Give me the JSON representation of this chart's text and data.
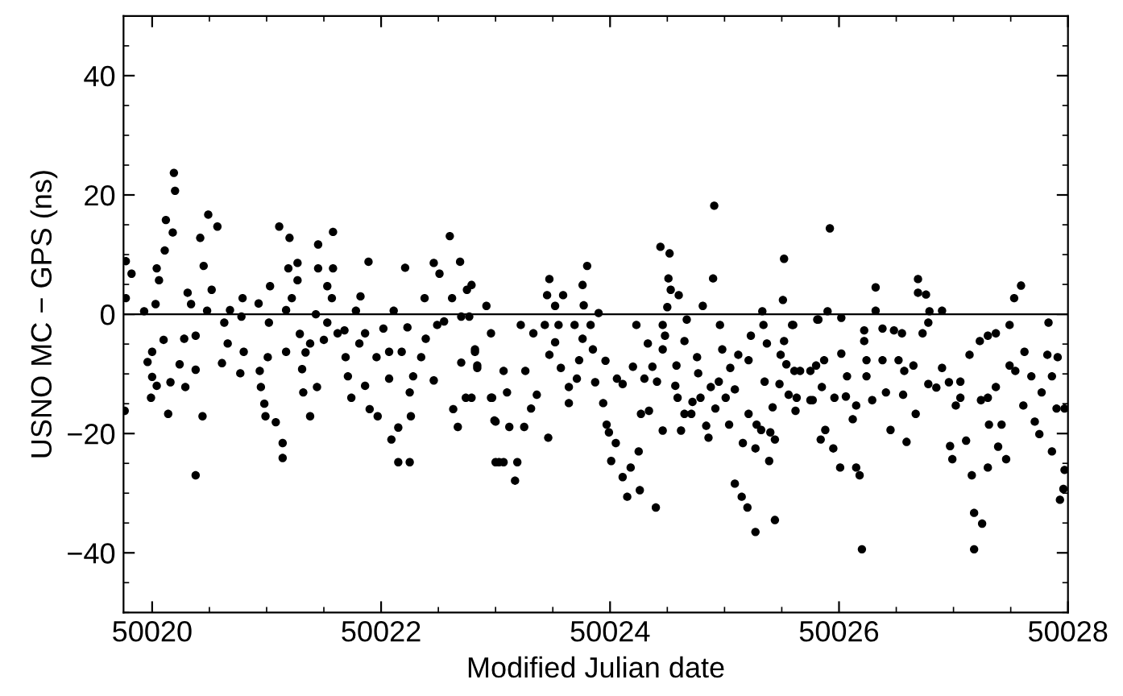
{
  "chart_data": {
    "type": "scatter",
    "xlabel": "Modified Julian date",
    "ylabel": "USNO MC − GPS (ns)",
    "xlim": [
      50019.75,
      50028
    ],
    "xticks": [
      50020,
      50022,
      50024,
      50026,
      50028
    ],
    "ylim": [
      -50,
      50
    ],
    "yticks": [
      {
        "value": -40,
        "label": "−40"
      },
      {
        "value": -20,
        "label": "−20"
      },
      0,
      20,
      40
    ],
    "ref_lines": [
      {
        "axis": "y",
        "value": 0,
        "color": "#000000",
        "line_style": "solid"
      }
    ],
    "marker": "circle",
    "grid": false,
    "legend": false,
    "series": [
      {
        "color": "#000000",
        "x": [
          50019.76,
          50019.77,
          50019.77,
          50019.82,
          50019.93,
          50020.0,
          50020.04,
          50019.96,
          50020.04,
          50020.06,
          50020.03,
          50020.1,
          50020.0,
          50019.99,
          50020.14,
          50020.19,
          50020.2,
          50020.12,
          50020.18,
          50020.11,
          50020.38,
          50020.44,
          50020.49,
          50020.57,
          50020.42,
          50020.45,
          50020.52,
          50020.31,
          50020.34,
          50020.48,
          50020.28,
          50020.38,
          50020.24,
          50020.38,
          50020.16,
          50020.29,
          50020.61,
          50020.68,
          50020.63,
          50020.66,
          50020.79,
          50020.78,
          50020.93,
          50021.03,
          50020.77,
          50020.94,
          50020.95,
          50021.01,
          50021.02,
          50020.8,
          50020.98,
          50020.99,
          50021.08,
          50021.14,
          50021.14,
          50021.11,
          50021.2,
          50021.19,
          50021.27,
          50021.27,
          50021.22,
          50021.17,
          50021.29,
          50021.17,
          50021.31,
          50021.32,
          50021.38,
          50021.34,
          50021.45,
          50021.45,
          50021.58,
          50021.58,
          50021.53,
          50021.57,
          50021.43,
          50021.53,
          50021.5,
          50021.62,
          50021.38,
          50021.44,
          50021.69,
          50021.71,
          50021.74,
          50021.68,
          50021.78,
          50021.82,
          50021.81,
          50021.89,
          50021.86,
          50021.86,
          50021.9,
          50021.97,
          50021.96,
          50022.02,
          50022.11,
          50022.21,
          50022.07,
          50022.07,
          50022.09,
          50022.15,
          50022.15,
          50022.25,
          50022.23,
          50022.18,
          50022.25,
          50022.26,
          50022.35,
          50022.28,
          50022.46,
          50022.38,
          50022.46,
          50022.51,
          50022.49,
          50022.39,
          50022.6,
          50022.69,
          50022.62,
          50022.55,
          50022.7,
          50022.75,
          50022.63,
          50022.67,
          50022.7,
          50022.74,
          50022.82,
          50022.84,
          50022.96,
          50022.99,
          50023.0,
          50022.79,
          50022.77,
          50022.82,
          50022.84,
          50022.79,
          50022.92,
          50022.96,
          50022.97,
          50023.0,
          50023.03,
          50023.07,
          50023.17,
          50023.19,
          50023.1,
          50023.12,
          50023.25,
          50023.07,
          50023.22,
          50023.26,
          50023.36,
          50023.31,
          50023.33,
          50023.43,
          50023.47,
          50023.46,
          50023.47,
          50023.45,
          50023.59,
          50023.52,
          50023.55,
          50023.57,
          50023.52,
          50023.64,
          50023.64,
          50023.71,
          50023.69,
          50023.76,
          50023.8,
          50023.76,
          50023.77,
          50023.83,
          50023.85,
          50023.73,
          50023.9,
          50023.96,
          50023.87,
          50023.94,
          50023.97,
          50023.99,
          50024.01,
          50024.05,
          50024.06,
          50024.11,
          50024.11,
          50024.15,
          50024.18,
          50024.25,
          50024.26,
          50024.23,
          50024.27,
          50024.2,
          50024.33,
          50024.37,
          50024.3,
          50024.34,
          50024.41,
          50024.4,
          50024.44,
          50024.52,
          50024.51,
          50024.53,
          50024.6,
          50024.5,
          50024.46,
          50024.48,
          50024.46,
          50024.58,
          50024.57,
          50024.59,
          50024.46,
          50024.62,
          50024.65,
          50024.67,
          50024.65,
          50024.71,
          50024.72,
          50024.76,
          50024.77,
          50024.79,
          50024.81,
          50024.84,
          50024.86,
          50024.91,
          50024.9,
          50024.96,
          50024.88,
          50024.92,
          50024.95,
          50025.01,
          50025.04,
          50024.98,
          50025.05,
          50025.12,
          50025.09,
          50025.09,
          50025.15,
          50025.2,
          50025.27,
          50025.16,
          50025.21,
          50025.23,
          50025.21,
          50025.28,
          50025.32,
          50025.27,
          50025.33,
          50025.34,
          50025.37,
          50025.35,
          50025.42,
          50025.4,
          50025.44,
          50025.39,
          50025.44,
          50025.52,
          50025.51,
          50025.52,
          50025.49,
          50025.48,
          50025.54,
          50025.56,
          50025.6,
          50025.62,
          50025.66,
          50025.75,
          50025.81,
          50025.84,
          50025.92,
          50025.9,
          50025.82,
          50026.02,
          50025.59,
          50025.61,
          50025.63,
          50025.75,
          50025.77,
          50025.8,
          50025.87,
          50025.85,
          50025.88,
          50025.95,
          50026.01,
          50026.02,
          50025.96,
          50026.07,
          50026.06,
          50026.12,
          50026.15,
          50026.15,
          50026.18,
          50026.2,
          50026.22,
          50026.22,
          50026.24,
          50026.24,
          50026.29,
          50026.32,
          50026.32,
          50026.38,
          50026.38,
          50026.41,
          50026.45,
          50026.48,
          50026.55,
          50026.52,
          50026.57,
          50026.56,
          50026.59,
          50026.65,
          50026.67,
          50026.69,
          50026.69,
          50026.76,
          50026.73,
          50026.79,
          50026.78,
          50026.9,
          50026.78,
          50026.85,
          50026.9,
          50026.96,
          50027.02,
          50026.97,
          50026.99,
          50027.06,
          50027.06,
          50027.14,
          50027.11,
          50027.16,
          50027.18,
          50027.25,
          50027.18,
          50027.23,
          50027.24,
          50027.3,
          50027.31,
          50027.3,
          50027.37,
          50027.39,
          50027.42,
          50027.46,
          50027.3,
          50027.37,
          50027.49,
          50027.53,
          50027.59,
          50027.49,
          50027.54,
          50027.62,
          50027.61,
          50027.71,
          50027.75,
          50027.68,
          50027.77,
          50027.83,
          50027.82,
          50027.91,
          50027.86,
          50027.9,
          50027.86,
          50027.97,
          50027.97,
          50027.93,
          50027.96
        ],
        "values": [
          -16.2,
          8.9,
          2.7,
          6.8,
          0.5,
          -10.5,
          -12,
          -8,
          7.7,
          5.7,
          1.7,
          -4.3,
          -6.3,
          -14,
          -16.7,
          23.7,
          20.7,
          15.8,
          13.7,
          10.7,
          -27,
          -17.1,
          16.7,
          14.7,
          12.8,
          8.1,
          4.1,
          3.6,
          1.7,
          0.6,
          -4.1,
          -3.6,
          -8.4,
          -9.3,
          -11.4,
          -12.2,
          -8.2,
          0.7,
          -1.4,
          -4.9,
          2.7,
          -0.4,
          1.8,
          4.7,
          -9.9,
          -9.5,
          -12.2,
          -7.2,
          -1.4,
          -6.3,
          -15,
          -17.1,
          -18.1,
          -21.6,
          -24.1,
          14.7,
          12.8,
          7.7,
          8.6,
          5.7,
          2.7,
          0.7,
          -3.3,
          -6.3,
          -9.2,
          -13.1,
          -17.1,
          -6.4,
          11.7,
          7.7,
          13.8,
          7.7,
          4.7,
          2.7,
          0,
          -1.4,
          -4.3,
          -3.2,
          -4.9,
          -12.2,
          -7.2,
          -10.4,
          -14,
          -2.7,
          0.6,
          3,
          -4.9,
          8.8,
          -3.2,
          -12,
          -15.9,
          -17.1,
          -7.2,
          -2.4,
          0.6,
          7.8,
          -6.3,
          -10.8,
          -21,
          -19,
          -24.8,
          -24.8,
          -2.2,
          -6.3,
          -13.1,
          -17.1,
          -7.2,
          -10.4,
          -11.1,
          2.7,
          8.6,
          6.8,
          -1.8,
          -4.1,
          13.1,
          8.8,
          2.7,
          -1.2,
          -0.4,
          4.1,
          -15.9,
          -18.9,
          -8.1,
          -14,
          -6.3,
          -8.6,
          -14,
          -17.8,
          -24.8,
          4.9,
          -0.4,
          -5.9,
          -9,
          -14,
          1.4,
          -3.2,
          -14,
          -18,
          -24.8,
          -24.8,
          -27.9,
          -24.8,
          -13.1,
          -18.9,
          -18.9,
          -9.5,
          -1.8,
          -9.5,
          -13.5,
          -15.8,
          -3.2,
          -1.8,
          -6.8,
          -20.7,
          5.9,
          3.2,
          3.2,
          1.4,
          -1.8,
          -9,
          -4.7,
          -12.2,
          -14.9,
          -10.8,
          -1.8,
          -4.1,
          8.1,
          4.9,
          1.5,
          -1.8,
          -5.9,
          -7.7,
          0.2,
          -7.8,
          -11.4,
          -14.9,
          -18.5,
          -19.8,
          -24.6,
          -21.6,
          -10.8,
          -11.7,
          -27.3,
          -30.6,
          -25.7,
          -23,
          -29.5,
          -1.8,
          -16.7,
          -8.8,
          -4.9,
          -8.8,
          -10.8,
          -16.2,
          -11.3,
          -32.4,
          11.3,
          10.2,
          6,
          4.1,
          3.2,
          1.2,
          -1.8,
          -3.6,
          -5.9,
          -8.6,
          -12,
          -14,
          -19.5,
          -19.5,
          -16.7,
          -0.9,
          -4.5,
          -16.7,
          -14.7,
          -7.2,
          -9.9,
          -14,
          1.4,
          -18.7,
          -20.7,
          18.2,
          6,
          -1.8,
          -12.2,
          -15.8,
          -11.3,
          -14,
          -18.5,
          -5.9,
          -9,
          -6.8,
          -12.6,
          -28.4,
          -30.6,
          -32.4,
          -36.5,
          -21.6,
          -16.7,
          -3.6,
          -7.7,
          -18.5,
          -19.4,
          -22.5,
          0.5,
          -1.8,
          -4.9,
          -11.3,
          -15.6,
          -19.8,
          -21,
          -24.6,
          -34.5,
          9.3,
          2.4,
          -4.5,
          -6.8,
          -11.7,
          -8.4,
          -13.5,
          -1.8,
          -16.2,
          -9.5,
          -14.4,
          -0.9,
          -21,
          14.4,
          0.5,
          -0.9,
          -0.6,
          -1.8,
          -9.5,
          -14,
          -9.5,
          -14.4,
          -8.6,
          -7.7,
          -12.2,
          -19.4,
          -22.5,
          -25.7,
          -6.6,
          -14,
          -10.4,
          -13.8,
          -17.6,
          -15.3,
          -25.7,
          -27,
          -39.4,
          -2.7,
          -4.5,
          -7.7,
          -10.4,
          -14.4,
          4.5,
          0.6,
          -2.4,
          -7.7,
          -13.1,
          -19.4,
          -2.7,
          -3.2,
          -7.7,
          -9.5,
          -13.5,
          -21.4,
          -8.6,
          -16.7,
          5.9,
          3.6,
          3.3,
          -3.2,
          0.5,
          -1.4,
          0.6,
          -11.7,
          -12.3,
          -9,
          -11.4,
          -15.3,
          -22.1,
          -24.3,
          -14,
          -11.3,
          -6.8,
          -21.2,
          -27,
          -33.3,
          -35.1,
          -39.4,
          -4.5,
          -14.4,
          -14,
          -18.5,
          -25.7,
          -12.2,
          -22.2,
          -18.5,
          -24.3,
          -3.6,
          -3.2,
          -1.8,
          2.7,
          4.8,
          -8.6,
          -9.5,
          -6.3,
          -15.3,
          -18,
          -20.1,
          -10.4,
          -13.1,
          -1.4,
          -6.8,
          -7.2,
          -10.4,
          -15.8,
          -23,
          -15.8,
          -26.1,
          -31.1,
          -29.3
        ]
      }
    ]
  }
}
